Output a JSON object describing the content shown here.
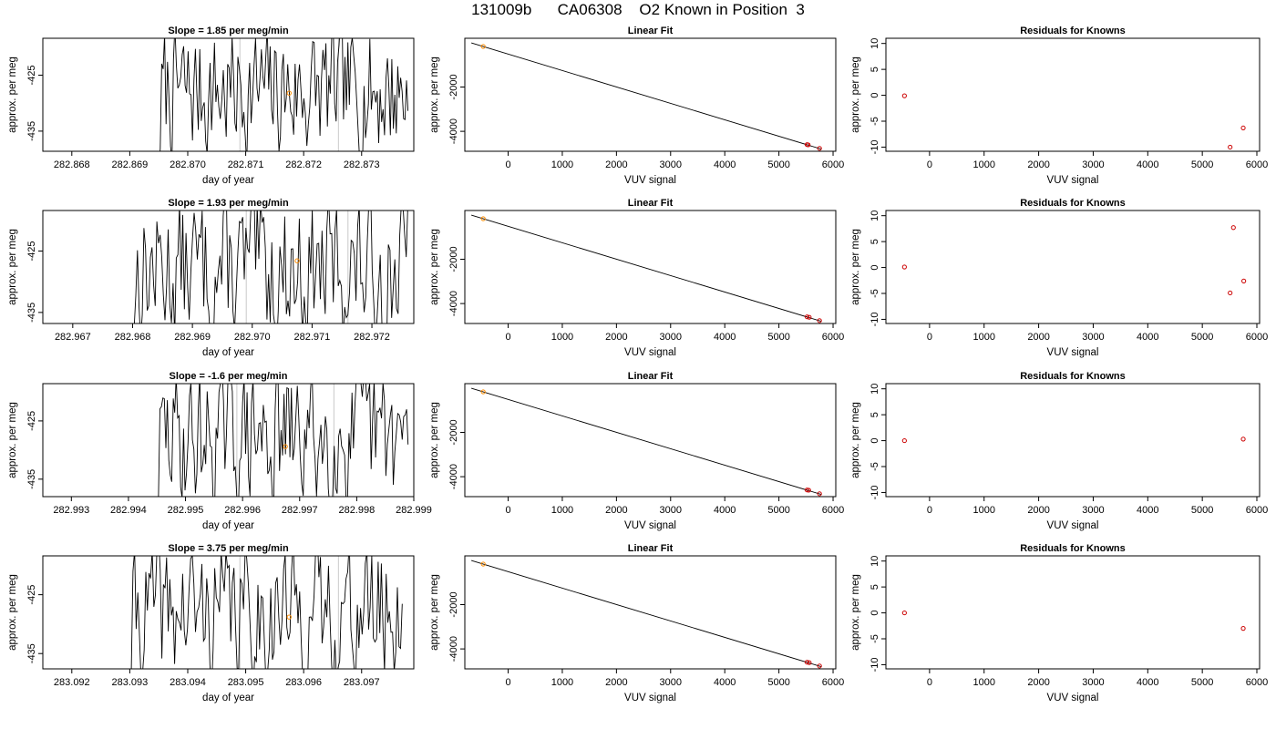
{
  "figure": {
    "title": "131009b      CA06308    O2 Known in Position  3"
  },
  "chart_data": [
    {
      "type": "line",
      "title": "Slope =  1.85  per meg/min",
      "xlabel": "day of year",
      "ylabel": "approx. per meg",
      "xlim": [
        282.8675,
        282.8739
      ],
      "ylim": [
        -438.6,
        -418.4
      ],
      "xticks": [
        "282.868",
        "282.869",
        "282.870",
        "282.871",
        "282.872",
        "282.873"
      ],
      "yticks": [
        "-435",
        "-425"
      ],
      "vlines": [
        282.8709,
        282.8726
      ],
      "mean_point": {
        "x": 282.87175,
        "y": -428.2
      },
      "series": [
        {
          "start": 282.8695,
          "end": 282.8738,
          "seed": 7
        }
      ]
    },
    {
      "type": "scatter",
      "title": "Linear Fit",
      "xlabel": "VUV signal",
      "ylabel": "approx. per meg",
      "xlim": [
        -800,
        6050
      ],
      "ylim": [
        -4900,
        200
      ],
      "xticks": [
        "0",
        "1000",
        "2000",
        "3000",
        "4000",
        "5000",
        "6000"
      ],
      "yticks": [
        "-4000",
        "-2000"
      ],
      "fit_line": {
        "x1": -680,
        "y1": -10,
        "x2": 5780,
        "y2": -4800
      },
      "points": [
        {
          "x": -460,
          "y": -170,
          "color": "#ff8c00"
        },
        {
          "x": 5520,
          "y": -4600,
          "color": "#cc0000"
        },
        {
          "x": 5540,
          "y": -4610,
          "color": "#cc0000"
        },
        {
          "x": 5750,
          "y": -4770,
          "color": "#cc0000"
        }
      ]
    },
    {
      "type": "scatter",
      "title": "Residuals for Knowns",
      "xlabel": "VUV signal",
      "ylabel": "approx. per meg",
      "xlim": [
        -800,
        6050
      ],
      "ylim": [
        -10.8,
        11
      ],
      "xticks": [
        "0",
        "1000",
        "2000",
        "3000",
        "4000",
        "5000",
        "6000"
      ],
      "yticks": [
        "-10",
        "-5",
        "0",
        "5",
        "10"
      ],
      "points": [
        {
          "x": -460,
          "y": -0.1,
          "color": "#cc0000"
        },
        {
          "x": 5510,
          "y": -10.0,
          "color": "#cc0000"
        },
        {
          "x": 5750,
          "y": -6.3,
          "color": "#cc0000"
        }
      ]
    },
    {
      "type": "line",
      "title": "Slope =  1.93  per meg/min",
      "xlabel": "day of year",
      "ylabel": "approx. per meg",
      "xlim": [
        282.9665,
        282.9727
      ],
      "ylim": [
        -436.8,
        -418.4
      ],
      "xticks": [
        "282.967",
        "282.968",
        "282.969",
        "282.970",
        "282.971",
        "282.972"
      ],
      "yticks": [
        "-435",
        "-425"
      ],
      "vlines": [
        282.9699,
        282.9716
      ],
      "mean_point": {
        "x": 282.97075,
        "y": -426.6
      },
      "series": [
        {
          "start": 282.968,
          "end": 282.9726,
          "seed": 13
        }
      ]
    },
    {
      "type": "scatter",
      "title": "Linear Fit",
      "xlabel": "VUV signal",
      "ylabel": "approx. per meg",
      "xlim": [
        -800,
        6050
      ],
      "ylim": [
        -4900,
        200
      ],
      "xticks": [
        "0",
        "1000",
        "2000",
        "3000",
        "4000",
        "5000",
        "6000"
      ],
      "yticks": [
        "-4000",
        "-2000"
      ],
      "fit_line": {
        "x1": -680,
        "y1": -10,
        "x2": 5780,
        "y2": -4800
      },
      "points": [
        {
          "x": -460,
          "y": -170,
          "color": "#ff8c00"
        },
        {
          "x": 5520,
          "y": -4600,
          "color": "#cc0000"
        },
        {
          "x": 5560,
          "y": -4620,
          "color": "#cc0000"
        },
        {
          "x": 5750,
          "y": -4770,
          "color": "#cc0000"
        }
      ]
    },
    {
      "type": "scatter",
      "title": "Residuals for Knowns",
      "xlabel": "VUV signal",
      "ylabel": "approx. per meg",
      "xlim": [
        -800,
        6050
      ],
      "ylim": [
        -10.8,
        11
      ],
      "xticks": [
        "0",
        "1000",
        "2000",
        "3000",
        "4000",
        "5000",
        "6000"
      ],
      "yticks": [
        "-10",
        "-5",
        "0",
        "5",
        "10"
      ],
      "points": [
        {
          "x": -460,
          "y": 0.1,
          "color": "#cc0000"
        },
        {
          "x": 5570,
          "y": 7.7,
          "color": "#cc0000"
        },
        {
          "x": 5510,
          "y": -4.9,
          "color": "#cc0000"
        },
        {
          "x": 5760,
          "y": -2.6,
          "color": "#cc0000"
        }
      ]
    },
    {
      "type": "line",
      "title": "Slope =  -1.6  per meg/min",
      "xlabel": "day of year",
      "ylabel": "approx. per meg",
      "xlim": [
        282.9925,
        282.999
      ],
      "ylim": [
        -438.0,
        -418.6
      ],
      "xticks": [
        "282.993",
        "282.994",
        "282.995",
        "282.996",
        "282.997",
        "282.998",
        "282.999"
      ],
      "yticks": [
        "-435",
        "-425"
      ],
      "vlines": [
        282.9959,
        282.9976
      ],
      "mean_point": {
        "x": 282.99675,
        "y": -429.4
      },
      "series": [
        {
          "start": 282.9945,
          "end": 282.9989,
          "seed": 29
        }
      ]
    },
    {
      "type": "scatter",
      "title": "Linear Fit",
      "xlabel": "VUV signal",
      "ylabel": "approx. per meg",
      "xlim": [
        -800,
        6050
      ],
      "ylim": [
        -4900,
        200
      ],
      "xticks": [
        "0",
        "1000",
        "2000",
        "3000",
        "4000",
        "5000",
        "6000"
      ],
      "yticks": [
        "-4000",
        "-2000"
      ],
      "fit_line": {
        "x1": -680,
        "y1": -10,
        "x2": 5780,
        "y2": -4800
      },
      "points": [
        {
          "x": -460,
          "y": -170,
          "color": "#ff8c00"
        },
        {
          "x": 5520,
          "y": -4600,
          "color": "#cc0000"
        },
        {
          "x": 5550,
          "y": -4610,
          "color": "#cc0000"
        },
        {
          "x": 5750,
          "y": -4770,
          "color": "#cc0000"
        }
      ]
    },
    {
      "type": "scatter",
      "title": "Residuals for Knowns",
      "xlabel": "VUV signal",
      "ylabel": "approx. per meg",
      "xlim": [
        -800,
        6050
      ],
      "ylim": [
        -10.8,
        11
      ],
      "xticks": [
        "0",
        "1000",
        "2000",
        "3000",
        "4000",
        "5000",
        "6000"
      ],
      "yticks": [
        "-10",
        "-5",
        "0",
        "5",
        "10"
      ],
      "points": [
        {
          "x": -460,
          "y": 0.0,
          "color": "#cc0000"
        },
        {
          "x": 5750,
          "y": 0.3,
          "color": "#cc0000"
        }
      ]
    },
    {
      "type": "line",
      "title": "Slope =  3.75  per meg/min",
      "xlabel": "day of year",
      "ylabel": "approx. per meg",
      "xlim": [
        283.0915,
        283.0979
      ],
      "ylim": [
        -437.6,
        -418.4
      ],
      "xticks": [
        "283.092",
        "283.093",
        "283.094",
        "283.095",
        "283.096",
        "283.097"
      ],
      "yticks": [
        "-435",
        "-425"
      ],
      "vlines": [
        283.0949,
        283.0966
      ],
      "mean_point": {
        "x": 283.09575,
        "y": -428.8
      },
      "series": [
        {
          "start": 283.093,
          "end": 283.0977,
          "seed": 41
        }
      ]
    },
    {
      "type": "scatter",
      "title": "Linear Fit",
      "xlabel": "VUV signal",
      "ylabel": "approx. per meg",
      "xlim": [
        -800,
        6050
      ],
      "ylim": [
        -4900,
        200
      ],
      "xticks": [
        "0",
        "1000",
        "2000",
        "3000",
        "4000",
        "5000",
        "6000"
      ],
      "yticks": [
        "-4000",
        "-2000"
      ],
      "fit_line": {
        "x1": -680,
        "y1": -10,
        "x2": 5780,
        "y2": -4800
      },
      "points": [
        {
          "x": -460,
          "y": -170,
          "color": "#ff8c00"
        },
        {
          "x": 5520,
          "y": -4600,
          "color": "#cc0000"
        },
        {
          "x": 5560,
          "y": -4620,
          "color": "#cc0000"
        },
        {
          "x": 5750,
          "y": -4770,
          "color": "#cc0000"
        }
      ]
    },
    {
      "type": "scatter",
      "title": "Residuals for Knowns",
      "xlabel": "VUV signal",
      "ylabel": "approx. per meg",
      "xlim": [
        -800,
        6050
      ],
      "ylim": [
        -10.8,
        11
      ],
      "xticks": [
        "0",
        "1000",
        "2000",
        "3000",
        "4000",
        "5000",
        "6000"
      ],
      "yticks": [
        "-10",
        "-5",
        "0",
        "5",
        "10"
      ],
      "points": [
        {
          "x": -460,
          "y": 0.0,
          "color": "#cc0000"
        },
        {
          "x": 5750,
          "y": -3.0,
          "color": "#cc0000"
        }
      ]
    }
  ]
}
